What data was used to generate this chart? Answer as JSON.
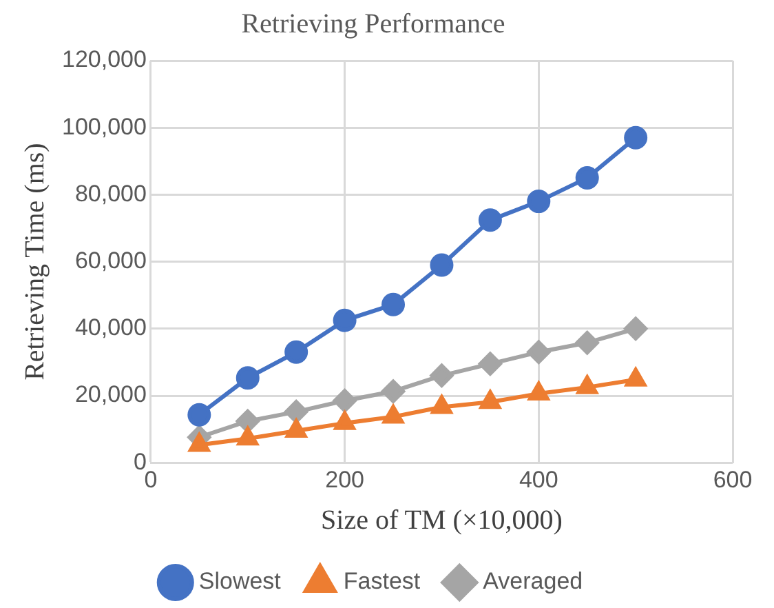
{
  "chart_data": {
    "type": "line",
    "title": "Retrieving Performance",
    "xlabel": "Size of TM (×10,000)",
    "ylabel": "Retrieving Time (ms)",
    "x": [
      50,
      100,
      150,
      200,
      250,
      300,
      350,
      400,
      450,
      500
    ],
    "series": [
      {
        "name": "Slowest",
        "color": "#4472c4",
        "marker": "circle",
        "values": [
          14300,
          25300,
          33000,
          42500,
          47200,
          59000,
          72400,
          78000,
          85000,
          97000
        ]
      },
      {
        "name": "Fastest",
        "color": "#ed7d31",
        "marker": "triangle",
        "values": [
          5300,
          7200,
          9500,
          11800,
          13700,
          16600,
          18100,
          20600,
          22500,
          24800
        ]
      },
      {
        "name": "Averaged",
        "color": "#a5a5a5",
        "marker": "diamond",
        "values": [
          7600,
          12400,
          15200,
          18500,
          21300,
          26000,
          29500,
          33000,
          35800,
          40000
        ]
      }
    ],
    "xlim": [
      0,
      600
    ],
    "xticks": [
      0,
      200,
      400,
      600
    ],
    "ylim": [
      0,
      120000
    ],
    "yticks": [
      0,
      {
        "value": 20000,
        "label": "20,000"
      },
      {
        "value": 40000,
        "label": "40,000"
      },
      {
        "value": 60000,
        "label": "60,000"
      },
      {
        "value": 80000,
        "label": "80,000"
      },
      {
        "value": 100000,
        "label": "100,000"
      },
      {
        "value": 120000,
        "label": "120,000"
      }
    ],
    "grid": true,
    "legend": "bottom"
  }
}
